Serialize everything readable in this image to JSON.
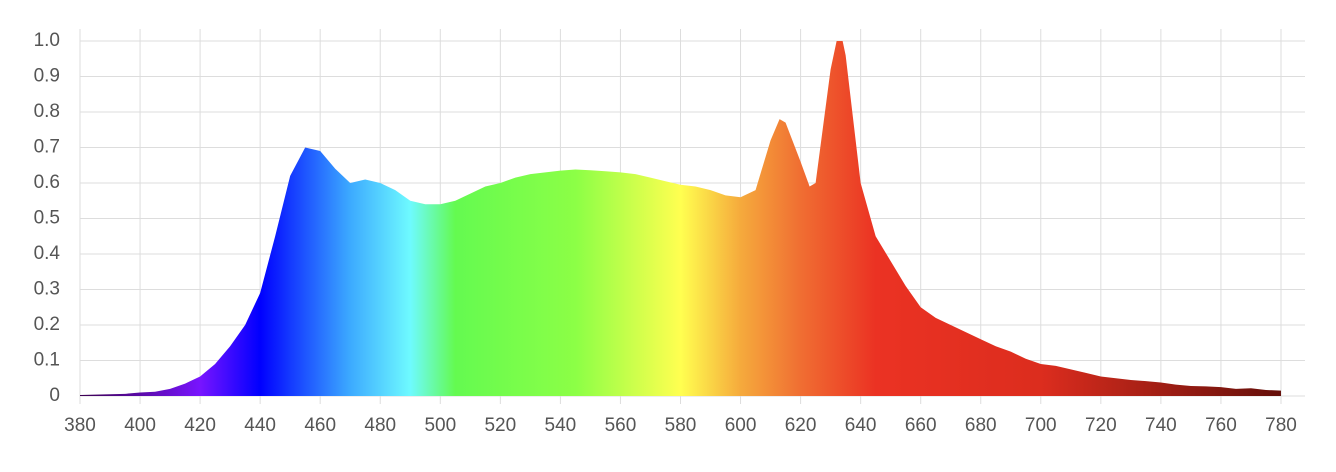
{
  "chart_data": {
    "type": "area",
    "x": [
      380,
      385,
      390,
      395,
      400,
      405,
      410,
      415,
      420,
      425,
      430,
      435,
      440,
      445,
      450,
      455,
      460,
      465,
      470,
      475,
      480,
      485,
      490,
      495,
      500,
      505,
      510,
      515,
      520,
      525,
      530,
      535,
      540,
      545,
      550,
      555,
      560,
      565,
      570,
      575,
      580,
      585,
      590,
      595,
      600,
      605,
      610,
      613,
      615,
      620,
      623,
      625,
      630,
      632,
      634,
      635,
      640,
      645,
      650,
      655,
      660,
      665,
      670,
      675,
      680,
      685,
      690,
      695,
      700,
      705,
      710,
      715,
      720,
      725,
      730,
      735,
      740,
      745,
      750,
      755,
      760,
      765,
      770,
      775,
      780
    ],
    "values": [
      0.003,
      0.004,
      0.005,
      0.006,
      0.01,
      0.012,
      0.02,
      0.035,
      0.055,
      0.09,
      0.14,
      0.2,
      0.29,
      0.45,
      0.62,
      0.7,
      0.69,
      0.64,
      0.6,
      0.61,
      0.6,
      0.58,
      0.55,
      0.54,
      0.54,
      0.55,
      0.57,
      0.59,
      0.6,
      0.615,
      0.625,
      0.63,
      0.635,
      0.638,
      0.636,
      0.633,
      0.63,
      0.625,
      0.615,
      0.605,
      0.595,
      0.59,
      0.58,
      0.565,
      0.56,
      0.58,
      0.72,
      0.78,
      0.77,
      0.66,
      0.59,
      0.6,
      0.92,
      1.0,
      1.0,
      0.96,
      0.6,
      0.45,
      0.38,
      0.31,
      0.25,
      0.22,
      0.2,
      0.18,
      0.16,
      0.14,
      0.125,
      0.105,
      0.09,
      0.085,
      0.075,
      0.065,
      0.055,
      0.05,
      0.045,
      0.042,
      0.038,
      0.032,
      0.028,
      0.027,
      0.025,
      0.02,
      0.022,
      0.017,
      0.015
    ],
    "fill": "spectral",
    "xlim": [
      380,
      788
    ],
    "ylim": [
      0,
      1
    ],
    "xticks": [
      380,
      400,
      420,
      440,
      460,
      480,
      500,
      520,
      540,
      560,
      580,
      600,
      620,
      640,
      660,
      680,
      700,
      720,
      740,
      760,
      780
    ],
    "yticks": [
      0,
      0.1,
      0.2,
      0.3,
      0.4,
      0.5,
      0.6,
      0.7,
      0.8,
      0.9,
      {
        "value": 1,
        "label": "1.0"
      }
    ],
    "grid": true
  }
}
